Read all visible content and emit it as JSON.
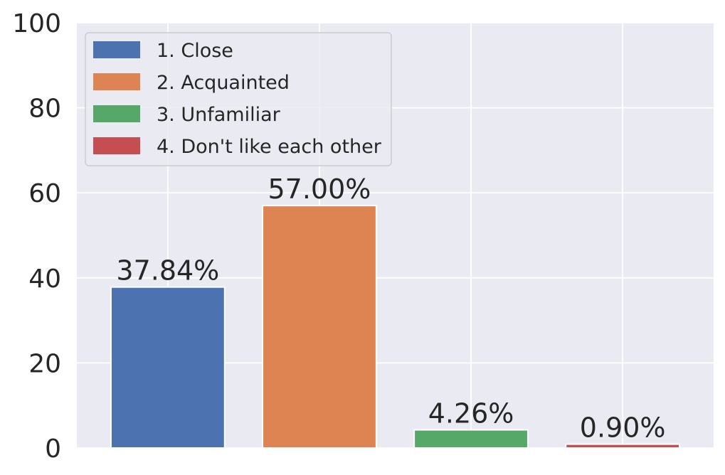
{
  "chart_data": {
    "type": "bar",
    "categories": [
      "1. Close",
      "2. Acquainted",
      "3. Unfamiliar",
      "4. Don't like each other"
    ],
    "values": [
      37.84,
      57.0,
      4.26,
      0.9
    ],
    "value_labels": [
      "37.84%",
      "57.00%",
      "4.26%",
      "0.90%"
    ],
    "colors": [
      "#4c72b0",
      "#dd8452",
      "#55a868",
      "#c44e52"
    ],
    "title": "",
    "xlabel": "",
    "ylabel": "",
    "ylim": [
      0,
      100
    ],
    "yticks": [
      0,
      20,
      40,
      60,
      80,
      100
    ],
    "grid": true,
    "legend": "top-left",
    "background": "#eaeaf2"
  }
}
